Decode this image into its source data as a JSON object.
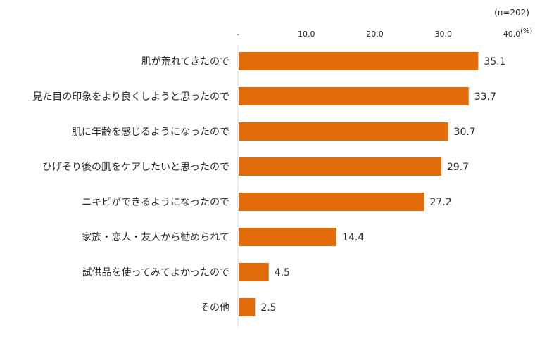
{
  "chart_data": {
    "type": "bar",
    "orientation": "horizontal",
    "sample_note": "(n=202)",
    "unit": "(%)",
    "categories": [
      "肌が荒れてきたので",
      "見た目の印象をより良くしようと思ったので",
      "肌に年齢を感じるようになったので",
      "ひげそり後の肌をケアしたいと思ったので",
      "ニキビができるようになったので",
      "家族・恋人・友人から勧められて",
      "試供品を使ってみてよかったので",
      "その他"
    ],
    "values": [
      35.1,
      33.7,
      30.7,
      29.7,
      27.2,
      14.4,
      4.5,
      2.5
    ],
    "value_labels": [
      "35.1",
      "33.7",
      "30.7",
      "29.7",
      "27.2",
      "14.4",
      "4.5",
      "2.5"
    ],
    "xlim": [
      0,
      40
    ],
    "xticks": [
      0,
      10,
      20,
      30,
      40
    ],
    "xtick_labels": [
      "-",
      "10.0",
      "20.0",
      "30.0",
      "40.0"
    ],
    "colors": {
      "bar": "#E36C0A",
      "axis": "#D9D9D9",
      "text": "#262626"
    },
    "grid": false,
    "legend": "none"
  }
}
